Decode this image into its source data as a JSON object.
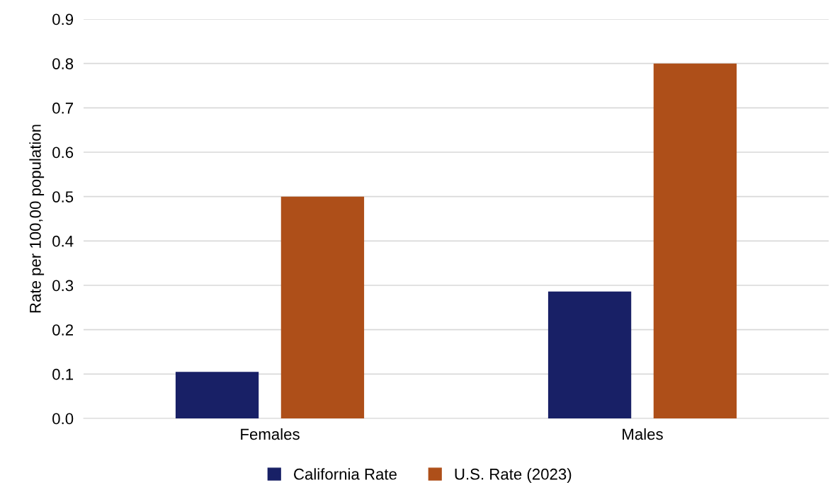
{
  "chart_data": {
    "type": "bar",
    "ylabel": "Rate per 100,00 population",
    "categories": [
      "Females",
      "Males"
    ],
    "series": [
      {
        "name": "California Rate",
        "color": "#182066",
        "values": [
          0.105,
          0.286
        ]
      },
      {
        "name": "U.S. Rate (2023)",
        "color": "#ae4f19",
        "values": [
          0.5,
          0.8
        ]
      }
    ],
    "ylim": [
      0,
      0.9
    ],
    "yticks": [
      {
        "value": 0,
        "label": "0.0"
      },
      {
        "value": 0.1,
        "label": "0.1"
      },
      {
        "value": 0.2,
        "label": "0.2"
      },
      {
        "value": 0.3,
        "label": "0.3"
      },
      {
        "value": 0.4,
        "label": "0.4"
      },
      {
        "value": 0.5,
        "label": "0.5"
      },
      {
        "value": 0.6,
        "label": "0.6"
      },
      {
        "value": 0.7,
        "label": "0.7"
      },
      {
        "value": 0.8,
        "label": "0.8"
      },
      {
        "value": 0.9,
        "label": "0.9"
      }
    ],
    "grid": "y",
    "legend": "bottom"
  }
}
